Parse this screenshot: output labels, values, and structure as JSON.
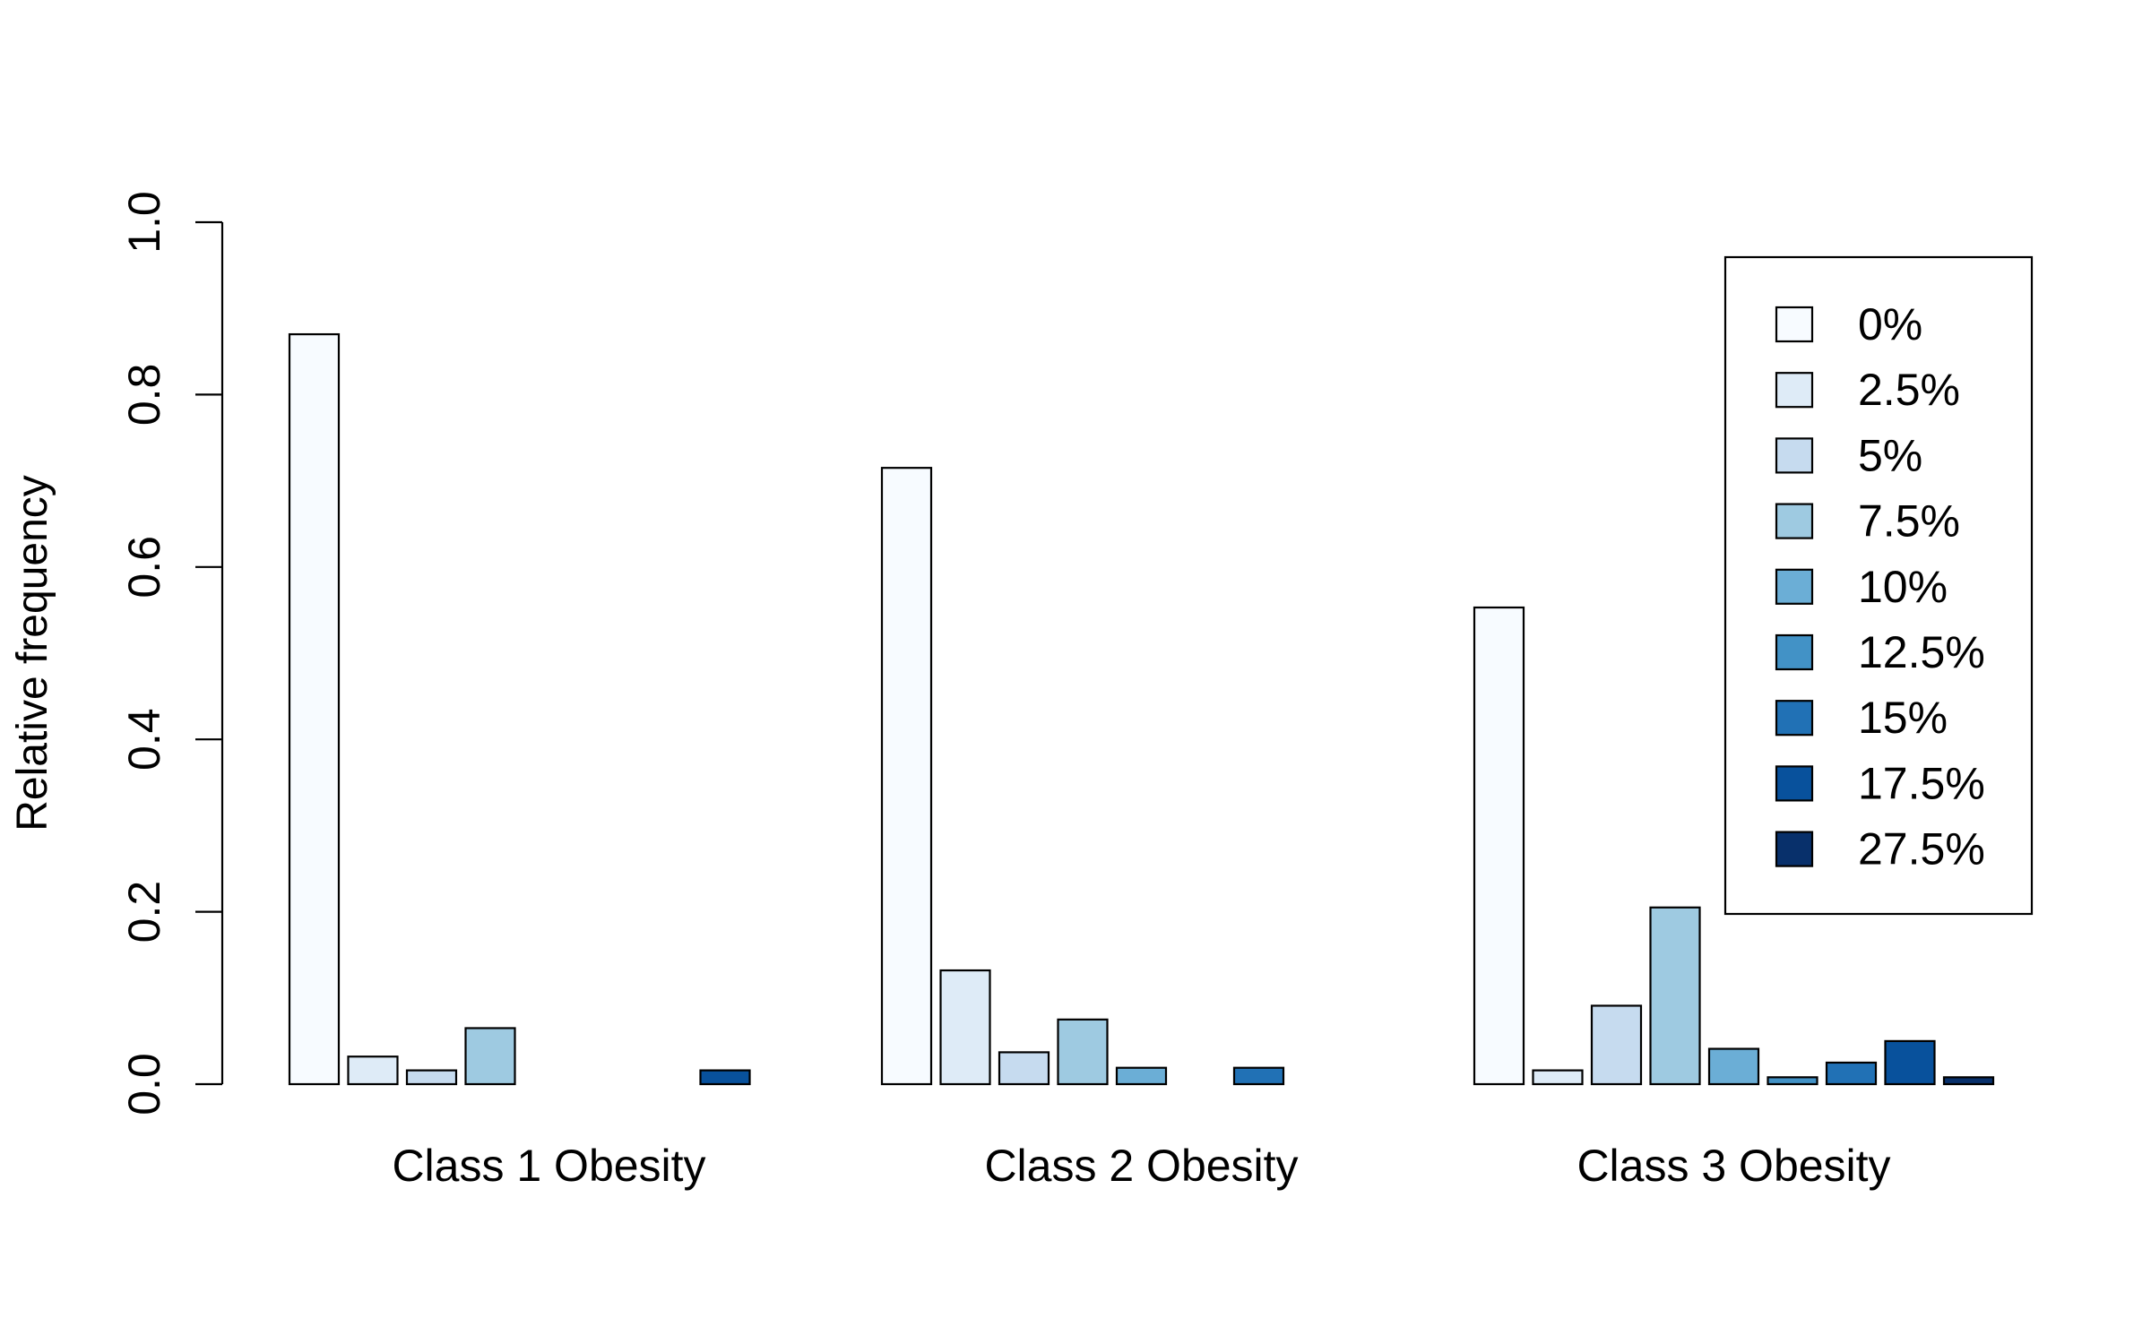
{
  "chart_data": {
    "type": "bar",
    "title": "",
    "xlabel": "",
    "ylabel": "Relative frequency",
    "ylim": [
      0,
      1
    ],
    "yticks": [
      "0.0",
      "0.2",
      "0.4",
      "0.6",
      "0.8",
      "1.0"
    ],
    "grid": false,
    "legend_position": "top-right",
    "categories": [
      "Class 1 Obesity",
      "Class 2 Obesity",
      "Class 3 Obesity"
    ],
    "series": [
      {
        "name": "0%",
        "color": "#F7FBFF",
        "values": [
          0.87,
          0.715,
          0.553
        ]
      },
      {
        "name": "2.5%",
        "color": "#DEEBF7",
        "values": [
          0.032,
          0.132,
          0.016
        ]
      },
      {
        "name": "5%",
        "color": "#C6DBEF",
        "values": [
          0.016,
          0.037,
          0.091
        ]
      },
      {
        "name": "7.5%",
        "color": "#9ECAE1",
        "values": [
          0.065,
          0.075,
          0.205
        ]
      },
      {
        "name": "10%",
        "color": "#6BAED6",
        "values": [
          0.0,
          0.019,
          0.041
        ]
      },
      {
        "name": "12.5%",
        "color": "#4292C6",
        "values": [
          0.0,
          0.0,
          0.008
        ]
      },
      {
        "name": "15%",
        "color": "#2171B5",
        "values": [
          0.0,
          0.019,
          0.025
        ]
      },
      {
        "name": "17.5%",
        "color": "#08519C",
        "values": [
          0.016,
          0.0,
          0.05
        ]
      },
      {
        "name": "27.5%",
        "color": "#08306B",
        "values": [
          0.0,
          0.0,
          0.008
        ]
      }
    ]
  }
}
